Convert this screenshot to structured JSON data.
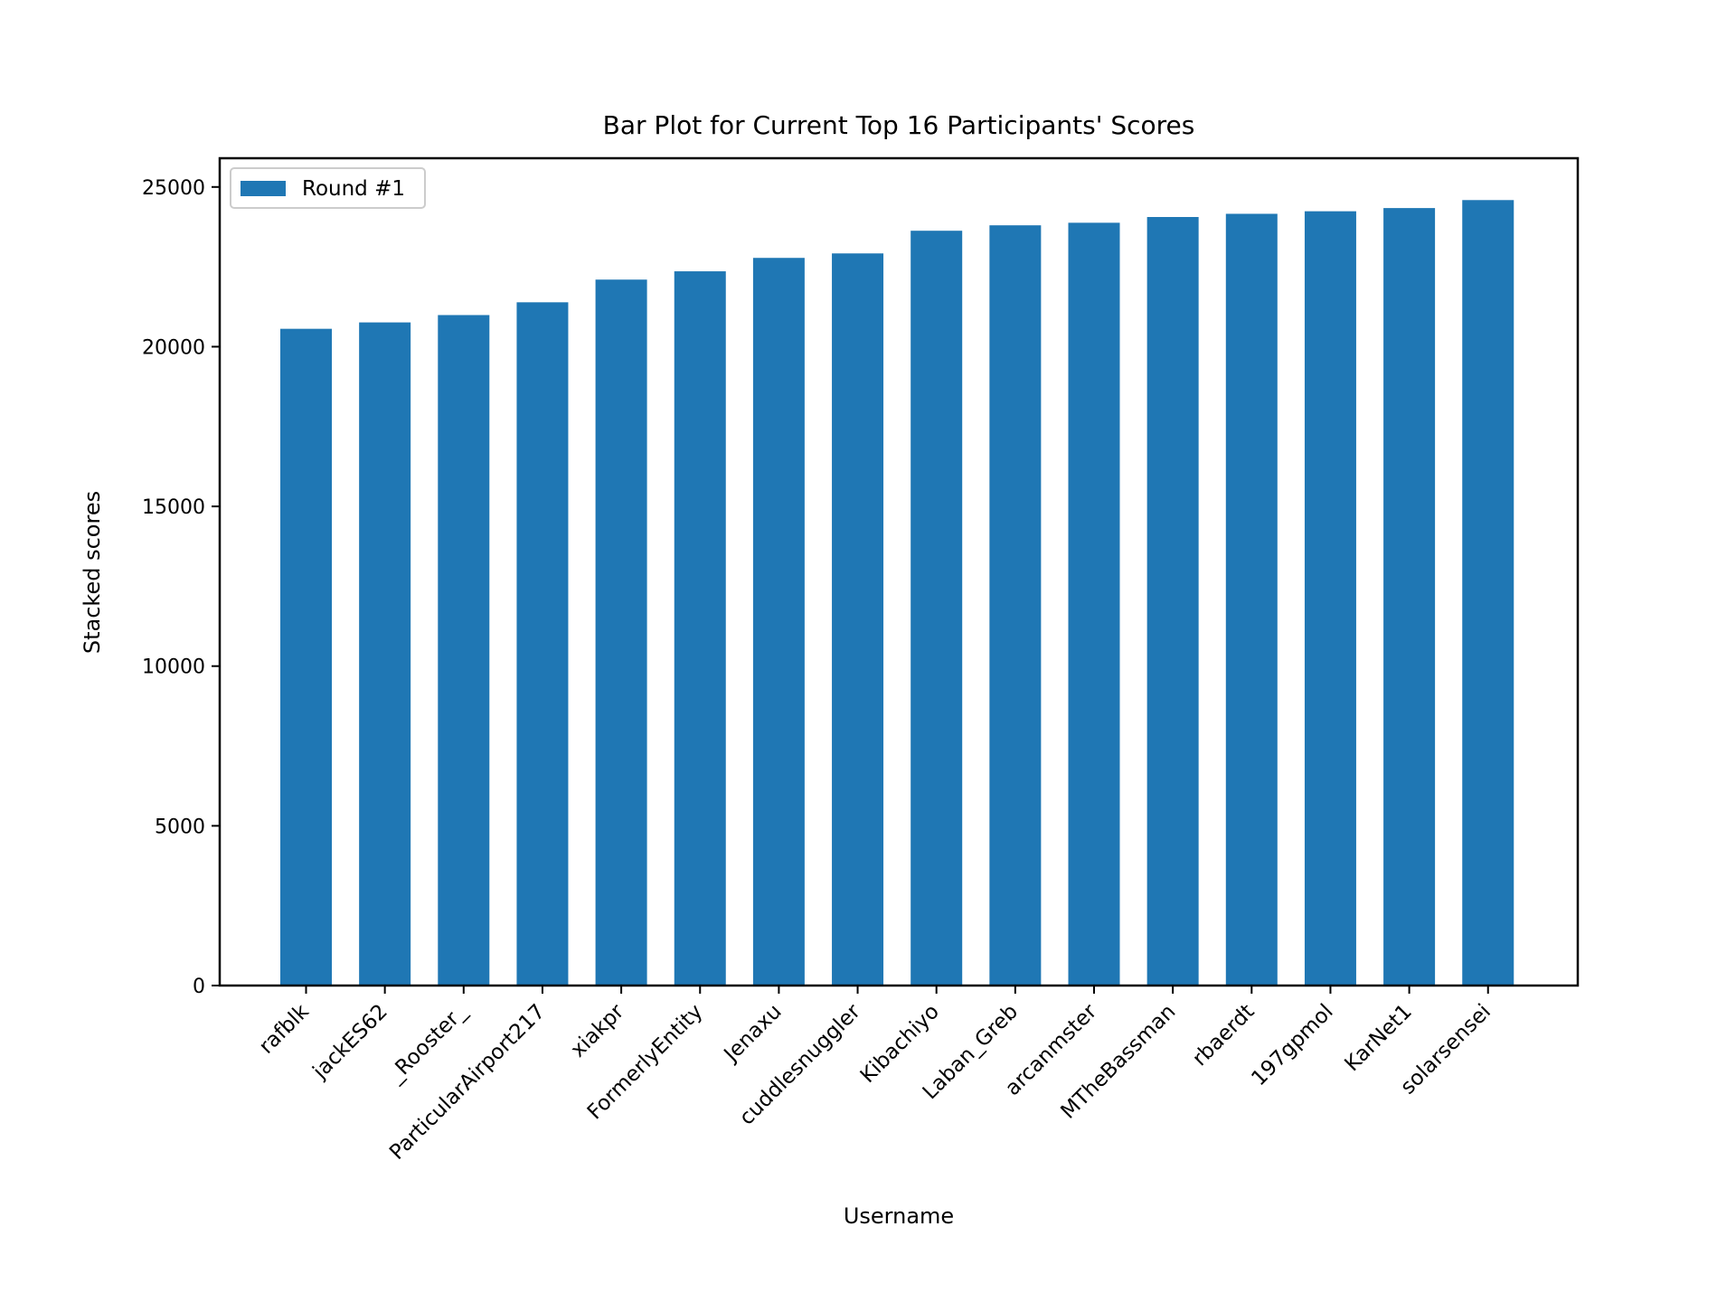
{
  "chart_data": {
    "type": "bar",
    "title": "Bar Plot for Current Top 16 Participants' Scores",
    "xlabel": "Username",
    "ylabel": "Stacked scores",
    "categories": [
      "rafblk",
      "jackES62",
      "_Rooster_",
      "ParticularAirport217",
      "xiakpr",
      "FormerlyEntity",
      "Jenaxu",
      "cuddlesnuggler",
      "Kibachiyo",
      "Laban_Greb",
      "arcanmster",
      "MTheBassman",
      "rbaerdt",
      "197gpmol",
      "KarNet1",
      "solarsensei"
    ],
    "series": [
      {
        "name": "Round #1",
        "color": "#1f77b4",
        "values": [
          20560,
          20760,
          20990,
          21390,
          22100,
          22360,
          22780,
          22920,
          23630,
          23800,
          23880,
          24060,
          24160,
          24240,
          24340,
          24590
        ]
      }
    ],
    "ylim": [
      0,
      25900
    ],
    "yticks": [
      0,
      5000,
      10000,
      15000,
      20000,
      25000
    ],
    "ytick_labels": [
      "0",
      "5000",
      "10000",
      "15000",
      "20000",
      "25000"
    ],
    "grid": false,
    "legend_position": "top-left"
  }
}
